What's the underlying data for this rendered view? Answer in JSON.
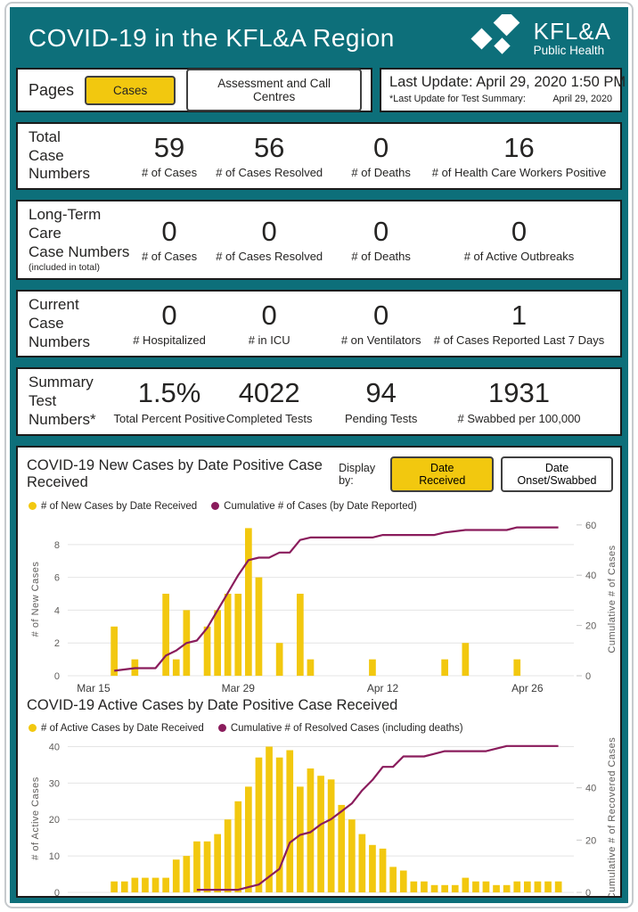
{
  "header": {
    "title": "COVID-19 in the KFL&A Region",
    "logo_line1": "KFL&A",
    "logo_line2": "Public Health"
  },
  "pages_bar": {
    "label": "Pages",
    "cases_button": "Cases",
    "assessment_button": "Assessment and Call Centres"
  },
  "last_update": {
    "line1": "Last Update: April 29, 2020 1:50 PM",
    "line2_label": "*Last Update for Test Summary:",
    "line2_value": "April 29, 2020"
  },
  "stat_rows": [
    {
      "label_lines": [
        "Total",
        "Case",
        "Numbers"
      ],
      "stats": [
        {
          "value": "59",
          "caption": "# of Cases"
        },
        {
          "value": "56",
          "caption": "# of Cases Resolved"
        },
        {
          "value": "0",
          "caption": "# of Deaths"
        },
        {
          "value": "16",
          "caption": "# of Health Care Workers Positive"
        }
      ]
    },
    {
      "label_lines": [
        "Long-Term Care",
        "Case Numbers"
      ],
      "note": "(included in total)",
      "stats": [
        {
          "value": "0",
          "caption": "# of Cases"
        },
        {
          "value": "0",
          "caption": "# of Cases Resolved"
        },
        {
          "value": "0",
          "caption": "# of Deaths"
        },
        {
          "value": "0",
          "caption": "# of Active Outbreaks"
        }
      ]
    },
    {
      "label_lines": [
        "Current",
        "Case",
        "Numbers"
      ],
      "stats": [
        {
          "value": "0",
          "caption": "# Hospitalized"
        },
        {
          "value": "0",
          "caption": "# in ICU"
        },
        {
          "value": "0",
          "caption": "# on Ventilators"
        },
        {
          "value": "1",
          "caption": "# of Cases Reported Last 7 Days"
        }
      ]
    },
    {
      "label_lines": [
        "Summary",
        "Test",
        "Numbers*"
      ],
      "stats": [
        {
          "value": "1.5%",
          "caption": "Total Percent Positive"
        },
        {
          "value": "4022",
          "caption": "Completed Tests"
        },
        {
          "value": "94",
          "caption": "Pending Tests"
        },
        {
          "value": "1931",
          "caption": "# Swabbed per 100,000"
        }
      ]
    }
  ],
  "colors": {
    "teal": "#0D6F7A",
    "yellow": "#F2C80F",
    "wine": "#8A1C5C",
    "grid": "#E4E4E4",
    "box_border": "#1B1B1B"
  },
  "chart_data": [
    {
      "type": "bar",
      "title": "COVID-19 New Cases by Date Positive Case Received",
      "display_by_label": "Display by:",
      "display_buttons": [
        {
          "label": "Date Received",
          "active": true
        },
        {
          "label": "Date Onset/Swabbed",
          "active": false
        }
      ],
      "legend": [
        {
          "label": "# of New Cases by Date Received",
          "color": "#F2C80F"
        },
        {
          "label": "Cumulative # of Cases (by Date Reported)",
          "color": "#8A1C5C"
        }
      ],
      "ylabel_left": "# of New Cases",
      "ylabel_right": "Cumulative # of Cases",
      "left_ticks": [
        0,
        2,
        4,
        6,
        8
      ],
      "left_max": 9.35,
      "right_ticks": [
        0,
        20,
        40,
        60
      ],
      "right_max": 61,
      "x_start_date": "Mar 13",
      "days": 48,
      "x_ticks": [
        {
          "day": 2,
          "label": "Mar 15"
        },
        {
          "day": 16,
          "label": "Mar 29"
        },
        {
          "day": 30,
          "label": "Apr 12"
        },
        {
          "day": 44,
          "label": "Apr 26"
        }
      ],
      "bars": [
        {
          "date": "Mar 17",
          "day": 4,
          "value": 3
        },
        {
          "date": "Mar 19",
          "day": 6,
          "value": 1
        },
        {
          "date": "Mar 22",
          "day": 9,
          "value": 5
        },
        {
          "date": "Mar 23",
          "day": 10,
          "value": 1
        },
        {
          "date": "Mar 24",
          "day": 11,
          "value": 4
        },
        {
          "date": "Mar 26",
          "day": 13,
          "value": 3
        },
        {
          "date": "Mar 27",
          "day": 14,
          "value": 4
        },
        {
          "date": "Mar 28",
          "day": 15,
          "value": 5
        },
        {
          "date": "Mar 29",
          "day": 16,
          "value": 5
        },
        {
          "date": "Mar 30",
          "day": 17,
          "value": 9
        },
        {
          "date": "Mar 31",
          "day": 18,
          "value": 6
        },
        {
          "date": "Apr 2",
          "day": 20,
          "value": 2
        },
        {
          "date": "Apr 4",
          "day": 22,
          "value": 5
        },
        {
          "date": "Apr 5",
          "day": 23,
          "value": 1
        },
        {
          "date": "Apr 11",
          "day": 29,
          "value": 1
        },
        {
          "date": "Apr 18",
          "day": 36,
          "value": 1
        },
        {
          "date": "Apr 20",
          "day": 38,
          "value": 2
        },
        {
          "date": "Apr 25",
          "day": 43,
          "value": 1
        }
      ],
      "line_name": "Cumulative # of Cases (by Date Reported)",
      "line_points": [
        [
          4,
          2
        ],
        [
          6,
          3
        ],
        [
          8,
          3
        ],
        [
          9,
          8
        ],
        [
          10,
          10
        ],
        [
          11,
          13
        ],
        [
          12,
          14
        ],
        [
          13,
          19
        ],
        [
          14,
          26
        ],
        [
          15,
          33
        ],
        [
          16,
          40
        ],
        [
          17,
          46
        ],
        [
          18,
          47
        ],
        [
          19,
          47
        ],
        [
          20,
          49
        ],
        [
          21,
          49
        ],
        [
          22,
          54
        ],
        [
          23,
          55
        ],
        [
          29,
          55
        ],
        [
          30,
          56
        ],
        [
          35,
          56
        ],
        [
          36,
          57
        ],
        [
          38,
          58
        ],
        [
          42,
          58
        ],
        [
          43,
          59
        ],
        [
          47,
          59
        ]
      ]
    },
    {
      "type": "bar",
      "title": "COVID-19 Active Cases by Date Positive Case Received",
      "legend": [
        {
          "label": "# of Active Cases by Date Received",
          "color": "#F2C80F"
        },
        {
          "label": "Cumulative # of Resolved Cases (including deaths)",
          "color": "#8A1C5C"
        }
      ],
      "ylabel_left": "# of Active Cases",
      "ylabel_right": "Cumulative # of Recovered Cases",
      "left_ticks": [
        0,
        10,
        20,
        30,
        40
      ],
      "left_max": 40.6,
      "right_ticks": [
        0,
        20,
        40
      ],
      "right_max": 56.6,
      "x_start_date": "Mar 13",
      "days": 48,
      "x_ticks": [
        {
          "day": 2,
          "label": "Mar 15"
        },
        {
          "day": 16,
          "label": "Mar 29"
        },
        {
          "day": 30,
          "label": "Apr 12"
        },
        {
          "day": 44,
          "label": "Apr 26"
        }
      ],
      "bars": [
        {
          "date": "Mar 17",
          "day": 4,
          "value": 3
        },
        {
          "date": "Mar 18",
          "day": 5,
          "value": 3
        },
        {
          "date": "Mar 19",
          "day": 6,
          "value": 4
        },
        {
          "date": "Mar 20",
          "day": 7,
          "value": 4
        },
        {
          "date": "Mar 21",
          "day": 8,
          "value": 4
        },
        {
          "date": "Mar 22",
          "day": 9,
          "value": 4
        },
        {
          "date": "Mar 23",
          "day": 10,
          "value": 9
        },
        {
          "date": "Mar 24",
          "day": 11,
          "value": 10
        },
        {
          "date": "Mar 25",
          "day": 12,
          "value": 14
        },
        {
          "date": "Mar 26",
          "day": 13,
          "value": 14
        },
        {
          "date": "Mar 27",
          "day": 14,
          "value": 16
        },
        {
          "date": "Mar 28",
          "day": 15,
          "value": 20
        },
        {
          "date": "Mar 29",
          "day": 16,
          "value": 25
        },
        {
          "date": "Mar 30",
          "day": 17,
          "value": 29
        },
        {
          "date": "Mar 31",
          "day": 18,
          "value": 37
        },
        {
          "date": "Apr 1",
          "day": 19,
          "value": 40
        },
        {
          "date": "Apr 2",
          "day": 20,
          "value": 37
        },
        {
          "date": "Apr 3",
          "day": 21,
          "value": 39
        },
        {
          "date": "Apr 4",
          "day": 22,
          "value": 29
        },
        {
          "date": "Apr 5",
          "day": 23,
          "value": 34
        },
        {
          "date": "Apr 6",
          "day": 24,
          "value": 32
        },
        {
          "date": "Apr 7",
          "day": 25,
          "value": 31
        },
        {
          "date": "Apr 8",
          "day": 26,
          "value": 24
        },
        {
          "date": "Apr 9",
          "day": 27,
          "value": 20
        },
        {
          "date": "Apr 10",
          "day": 28,
          "value": 16
        },
        {
          "date": "Apr 11",
          "day": 29,
          "value": 13
        },
        {
          "date": "Apr 12",
          "day": 30,
          "value": 12
        },
        {
          "date": "Apr 13",
          "day": 31,
          "value": 7
        },
        {
          "date": "Apr 14",
          "day": 32,
          "value": 6
        },
        {
          "date": "Apr 15",
          "day": 33,
          "value": 3
        },
        {
          "date": "Apr 16",
          "day": 34,
          "value": 3
        },
        {
          "date": "Apr 17",
          "day": 35,
          "value": 2
        },
        {
          "date": "Apr 18",
          "day": 36,
          "value": 2
        },
        {
          "date": "Apr 19",
          "day": 37,
          "value": 2
        },
        {
          "date": "Apr 20",
          "day": 38,
          "value": 4
        },
        {
          "date": "Apr 21",
          "day": 39,
          "value": 3
        },
        {
          "date": "Apr 22",
          "day": 40,
          "value": 3
        },
        {
          "date": "Apr 23",
          "day": 41,
          "value": 2
        },
        {
          "date": "Apr 24",
          "day": 42,
          "value": 2
        },
        {
          "date": "Apr 25",
          "day": 43,
          "value": 3
        },
        {
          "date": "Apr 26",
          "day": 44,
          "value": 3
        },
        {
          "date": "Apr 27",
          "day": 45,
          "value": 3
        },
        {
          "date": "Apr 28",
          "day": 46,
          "value": 3
        },
        {
          "date": "Apr 29",
          "day": 47,
          "value": 3
        }
      ],
      "line_name": "Cumulative # of Resolved Cases (including deaths)",
      "line_points": [
        [
          12,
          1
        ],
        [
          16,
          1
        ],
        [
          17,
          2
        ],
        [
          18,
          3
        ],
        [
          19,
          6
        ],
        [
          20,
          9
        ],
        [
          21,
          19
        ],
        [
          22,
          22
        ],
        [
          23,
          23
        ],
        [
          24,
          26
        ],
        [
          25,
          28
        ],
        [
          26,
          31
        ],
        [
          27,
          34
        ],
        [
          28,
          39
        ],
        [
          29,
          43
        ],
        [
          30,
          48
        ],
        [
          31,
          48
        ],
        [
          32,
          52
        ],
        [
          34,
          52
        ],
        [
          35,
          53
        ],
        [
          36,
          54
        ],
        [
          40,
          54
        ],
        [
          41,
          55
        ],
        [
          42,
          56
        ],
        [
          47,
          56
        ]
      ]
    }
  ]
}
